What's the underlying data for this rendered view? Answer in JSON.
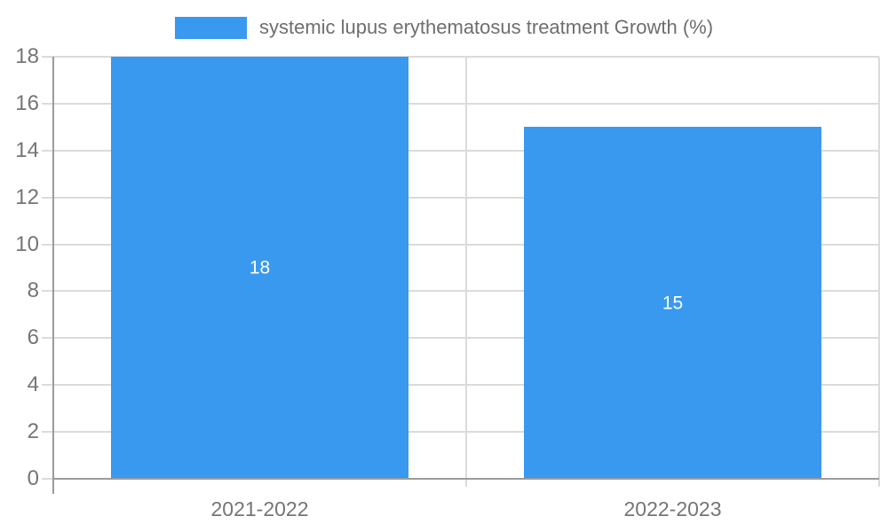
{
  "legend": {
    "label": "systemic lupus erythematosus treatment Growth (%)"
  },
  "chart_data": {
    "type": "bar",
    "title": "",
    "series_name": "systemic lupus erythematosus treatment Growth (%)",
    "categories": [
      "2021-2022",
      "2022-2023"
    ],
    "values": [
      18,
      15
    ],
    "data_labels": [
      "18",
      "15"
    ],
    "xlabel": "",
    "ylabel": "",
    "ylim": [
      0,
      18
    ],
    "yticks": [
      0,
      2,
      4,
      6,
      8,
      10,
      12,
      14,
      16,
      18
    ],
    "grid": true,
    "legend_position": "top",
    "colors": {
      "bar": "#3999EE",
      "bar_label": "#FFFFFF",
      "axis_text": "#757575",
      "legend_text": "#6E6E6E",
      "gridline": "#DBDBDB",
      "axis_line": "#9B9B9B",
      "background": "#FFFFFF"
    }
  }
}
